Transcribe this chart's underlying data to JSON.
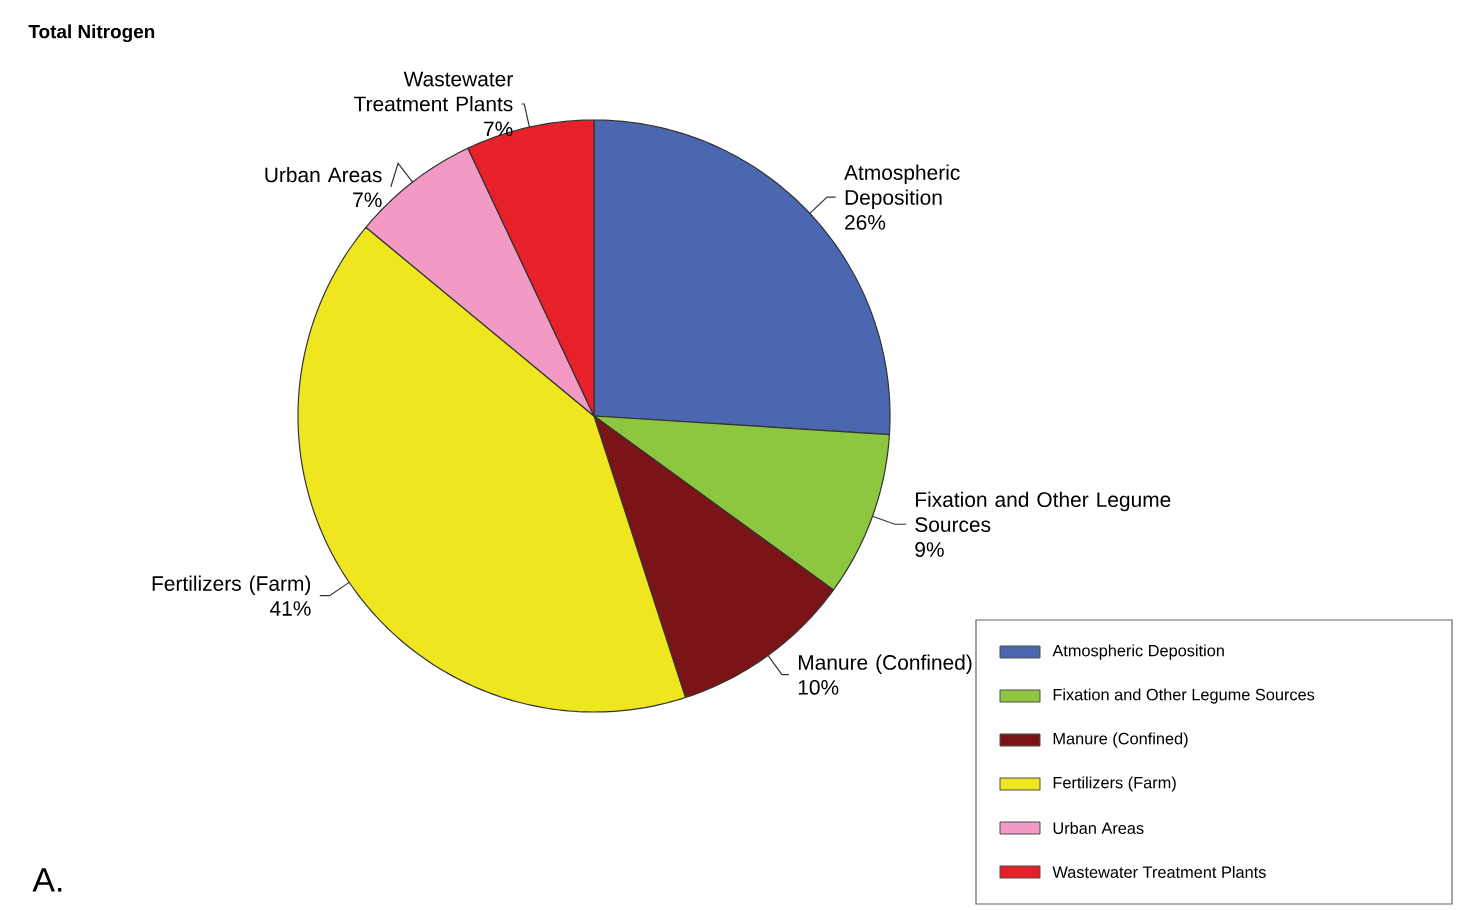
{
  "chart_data": {
    "type": "pie",
    "title": "Total Nitrogen",
    "categories": [
      "Atmospheric Deposition",
      "Fixation and Other Legume Sources",
      "Manure (Confined)",
      "Fertilizers (Farm)",
      "Urban Areas",
      "Wastewater Treatment Plants"
    ],
    "values": [
      26,
      9,
      10,
      41,
      7,
      7
    ],
    "value_labels": [
      "26%",
      "9%",
      "10%",
      "41%",
      "7%",
      "7%"
    ],
    "colors": [
      "#4a67b0",
      "#8dc63f",
      "#7b1416",
      "#f0e620",
      "#f29ac4",
      "#e8202a"
    ],
    "legend": "bottom right",
    "annotations": [
      "A."
    ]
  }
}
